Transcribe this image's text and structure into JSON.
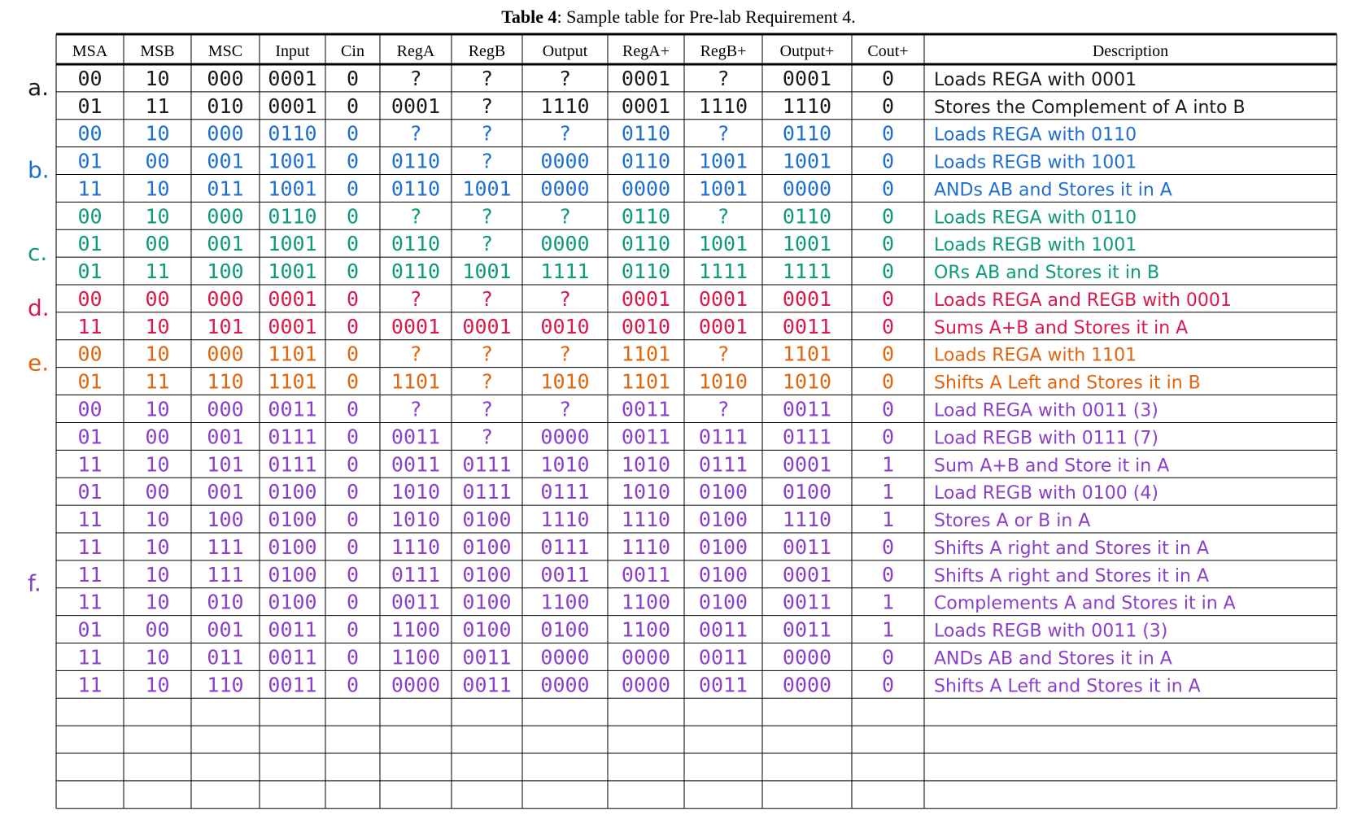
{
  "caption": {
    "label": "Table 4",
    "text": ": Sample table for Pre-lab Requirement 4."
  },
  "columns": [
    "MSA",
    "MSB",
    "MSC",
    "Input",
    "Cin",
    "RegA",
    "RegB",
    "Output",
    "RegA+",
    "RegB+",
    "Output+",
    "Cout+",
    "Description"
  ],
  "colors": {
    "black": "#1a1a1a",
    "blue": "#1f6fd0",
    "teal": "#0e9a7a",
    "red": "#d81b4a",
    "orange": "#e0650f",
    "purple": "#8a3fc9"
  },
  "parts": [
    {
      "label": "a.",
      "row": 0,
      "color": "black"
    },
    {
      "label": "b.",
      "row": 3,
      "color": "blue"
    },
    {
      "label": "c.",
      "row": 6,
      "color": "teal"
    },
    {
      "label": "d.",
      "row": 8,
      "color": "red"
    },
    {
      "label": "e.",
      "row": 10,
      "color": "orange"
    },
    {
      "label": "f.",
      "row": 18,
      "color": "purple"
    }
  ],
  "rows": [
    {
      "color": "black",
      "cells": [
        "00",
        "10",
        "000",
        "0001",
        "0",
        "?",
        "?",
        "?",
        "0001",
        "?",
        "0001",
        "0",
        "Loads REGA with 0001"
      ]
    },
    {
      "color": "black",
      "cells": [
        "01",
        "11",
        "010",
        "0001",
        "0",
        "0001",
        "?",
        "1110",
        "0001",
        "1110",
        "1110",
        "0",
        "Stores the Complement of A into B"
      ]
    },
    {
      "color": "blue",
      "cells": [
        "00",
        "10",
        "000",
        "0110",
        "0",
        "?",
        "?",
        "?",
        "0110",
        "?",
        "0110",
        "0",
        "Loads REGA with 0110"
      ]
    },
    {
      "color": "blue",
      "cells": [
        "01",
        "00",
        "001",
        "1001",
        "0",
        "0110",
        "?",
        "0000",
        "0110",
        "1001",
        "1001",
        "0",
        "Loads REGB with 1001"
      ]
    },
    {
      "color": "blue",
      "cells": [
        "11",
        "10",
        "011",
        "1001",
        "0",
        "0110",
        "1001",
        "0000",
        "0000",
        "1001",
        "0000",
        "0",
        "ANDs AB and Stores it in A"
      ]
    },
    {
      "color": "teal",
      "cells": [
        "00",
        "10",
        "000",
        "0110",
        "0",
        "?",
        "?",
        "?",
        "0110",
        "?",
        "0110",
        "0",
        "Loads REGA with 0110"
      ]
    },
    {
      "color": "teal",
      "cells": [
        "01",
        "00",
        "001",
        "1001",
        "0",
        "0110",
        "?",
        "0000",
        "0110",
        "1001",
        "1001",
        "0",
        "Loads REGB with 1001"
      ]
    },
    {
      "color": "teal",
      "cells": [
        "01",
        "11",
        "100",
        "1001",
        "0",
        "0110",
        "1001",
        "1111",
        "0110",
        "1111",
        "1111",
        "0",
        "ORs AB and Stores it in B"
      ]
    },
    {
      "color": "red",
      "cells": [
        "00",
        "00",
        "000",
        "0001",
        "0",
        "?",
        "?",
        "?",
        "0001",
        "0001",
        "0001",
        "0",
        "Loads REGA and REGB with 0001"
      ]
    },
    {
      "color": "red",
      "cells": [
        "11",
        "10",
        "101",
        "0001",
        "0",
        "0001",
        "0001",
        "0010",
        "0010",
        "0001",
        "0011",
        "0",
        "Sums A+B and Stores it in A"
      ]
    },
    {
      "color": "orange",
      "cells": [
        "00",
        "10",
        "000",
        "1101",
        "0",
        "?",
        "?",
        "?",
        "1101",
        "?",
        "1101",
        "0",
        "Loads REGA with 1101"
      ]
    },
    {
      "color": "orange",
      "cells": [
        "01",
        "11",
        "110",
        "1101",
        "0",
        "1101",
        "?",
        "1010",
        "1101",
        "1010",
        "1010",
        "0",
        "Shifts A Left and Stores it in B"
      ]
    },
    {
      "color": "purple",
      "cells": [
        "00",
        "10",
        "000",
        "0011",
        "0",
        "?",
        "?",
        "?",
        "0011",
        "?",
        "0011",
        "0",
        "Load REGA with 0011 (3)"
      ]
    },
    {
      "color": "purple",
      "cells": [
        "01",
        "00",
        "001",
        "0111",
        "0",
        "0011",
        "?",
        "0000",
        "0011",
        "0111",
        "0111",
        "0",
        "Load REGB with 0111 (7)"
      ]
    },
    {
      "color": "purple",
      "cells": [
        "11",
        "10",
        "101",
        "0111",
        "0",
        "0011",
        "0111",
        "1010",
        "1010",
        "0111",
        "0001",
        "1",
        "Sum A+B and Store it in A"
      ]
    },
    {
      "color": "purple",
      "cells": [
        "01",
        "00",
        "001",
        "0100",
        "0",
        "1010",
        "0111",
        "0111",
        "1010",
        "0100",
        "0100",
        "1",
        "Load REGB with 0100 (4)"
      ]
    },
    {
      "color": "purple",
      "cells": [
        "11",
        "10",
        "100",
        "0100",
        "0",
        "1010",
        "0100",
        "1110",
        "1110",
        "0100",
        "1110",
        "1",
        "Stores A or B in A"
      ]
    },
    {
      "color": "purple",
      "cells": [
        "11",
        "10",
        "111",
        "0100",
        "0",
        "1110",
        "0100",
        "0111",
        "1110",
        "0100",
        "0011",
        "0",
        "Shifts A right and Stores it in A"
      ]
    },
    {
      "color": "purple",
      "cells": [
        "11",
        "10",
        "111",
        "0100",
        "0",
        "0111",
        "0100",
        "0011",
        "0011",
        "0100",
        "0001",
        "0",
        "Shifts A right and Stores it in A"
      ]
    },
    {
      "color": "purple",
      "cells": [
        "11",
        "10",
        "010",
        "0100",
        "0",
        "0011",
        "0100",
        "1100",
        "1100",
        "0100",
        "0011",
        "1",
        "Complements A and Stores it in A"
      ]
    },
    {
      "color": "purple",
      "cells": [
        "01",
        "00",
        "001",
        "0011",
        "0",
        "1100",
        "0100",
        "0100",
        "1100",
        "0011",
        "0011",
        "1",
        "Loads REGB with 0011 (3)"
      ]
    },
    {
      "color": "purple",
      "cells": [
        "11",
        "10",
        "011",
        "0011",
        "0",
        "1100",
        "0011",
        "0000",
        "0000",
        "0011",
        "0000",
        "0",
        "ANDs AB and Stores it in A"
      ]
    },
    {
      "color": "purple",
      "cells": [
        "11",
        "10",
        "110",
        "0011",
        "0",
        "0000",
        "0011",
        "0000",
        "0000",
        "0011",
        "0000",
        "0",
        "Shifts A Left and Stores it in A"
      ]
    },
    {
      "color": "black",
      "cells": [
        "",
        "",
        "",
        "",
        "",
        "",
        "",
        "",
        "",
        "",
        "",
        "",
        ""
      ]
    },
    {
      "color": "black",
      "cells": [
        "",
        "",
        "",
        "",
        "",
        "",
        "",
        "",
        "",
        "",
        "",
        "",
        ""
      ]
    },
    {
      "color": "black",
      "cells": [
        "",
        "",
        "",
        "",
        "",
        "",
        "",
        "",
        "",
        "",
        "",
        "",
        ""
      ]
    },
    {
      "color": "black",
      "cells": [
        "",
        "",
        "",
        "",
        "",
        "",
        "",
        "",
        "",
        "",
        "",
        "",
        ""
      ]
    }
  ]
}
